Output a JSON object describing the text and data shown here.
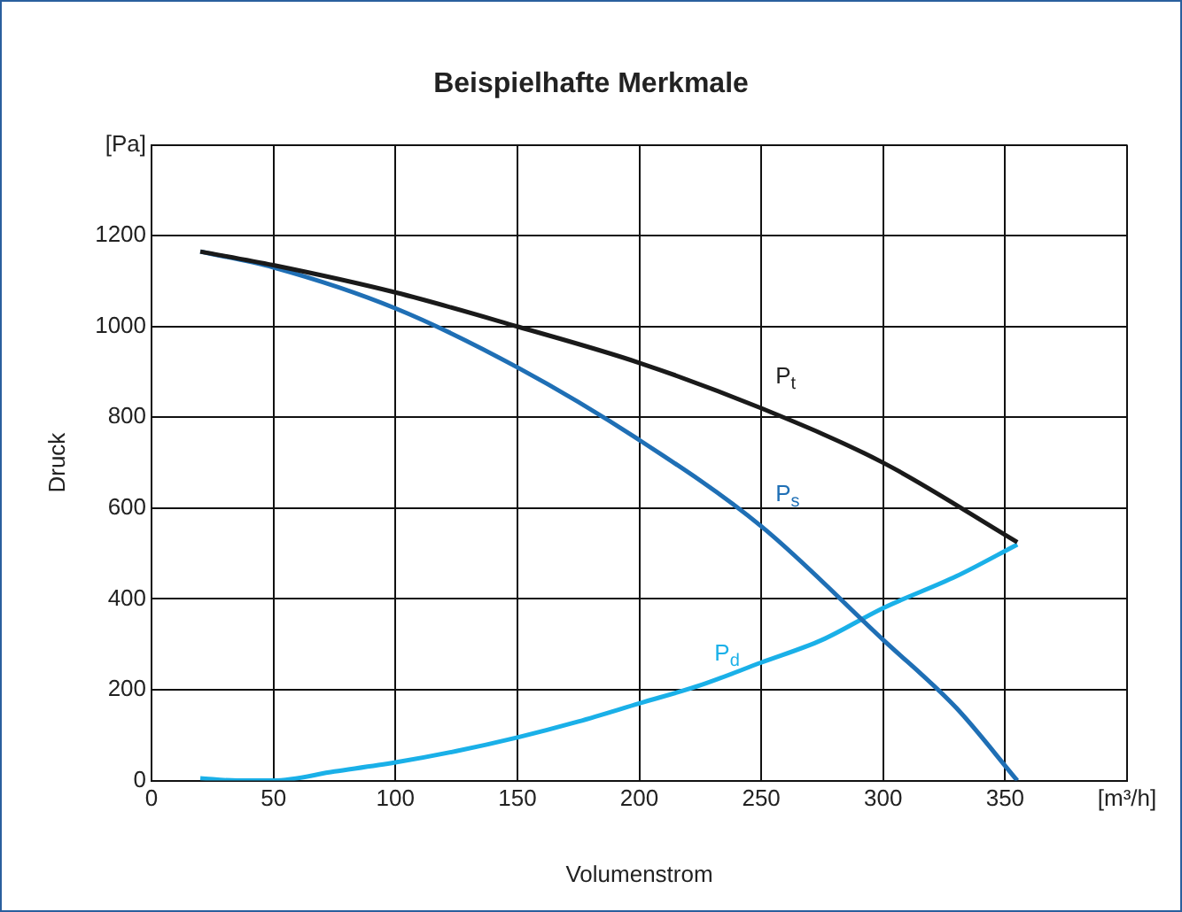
{
  "chart_data": {
    "type": "line",
    "title": "Beispielhafte Merkmale",
    "xlabel": "Volumenstrom",
    "ylabel": "Druck",
    "xlim": [
      0,
      400
    ],
    "xticks": [
      0,
      50,
      100,
      150,
      200,
      250,
      300,
      350,
      {
        "value": 400,
        "label": "[m³/h]"
      }
    ],
    "ylim": [
      0,
      1400
    ],
    "yticks": [
      0,
      200,
      400,
      600,
      800,
      1000,
      1200,
      {
        "value": 1400,
        "label": "[Pa]"
      }
    ],
    "grid": true,
    "legend": false,
    "marker": "none",
    "line_style": "solid",
    "series": [
      {
        "name": "P$_{t}$",
        "color": "#1a1a1a",
        "x": [
          20,
          50,
          100,
          150,
          200,
          250,
          300,
          355
        ],
        "values": [
          1165,
          1135,
          1075,
          1000,
          920,
          820,
          700,
          525
        ]
      },
      {
        "name": "P$_{s}$",
        "color": "#1f6fb5",
        "x": [
          20,
          50,
          100,
          150,
          200,
          250,
          300,
          330,
          355
        ],
        "values": [
          1165,
          1130,
          1040,
          910,
          750,
          560,
          310,
          160,
          0
        ]
      },
      {
        "name": "P$_{d}$",
        "color": "#1ab0e8",
        "x": [
          20,
          35,
          50,
          75,
          100,
          125,
          150,
          175,
          200,
          225,
          250,
          275,
          300,
          330,
          355
        ],
        "values": [
          5,
          0,
          0,
          20,
          40,
          65,
          95,
          130,
          170,
          210,
          260,
          310,
          380,
          450,
          520
        ]
      }
    ]
  }
}
